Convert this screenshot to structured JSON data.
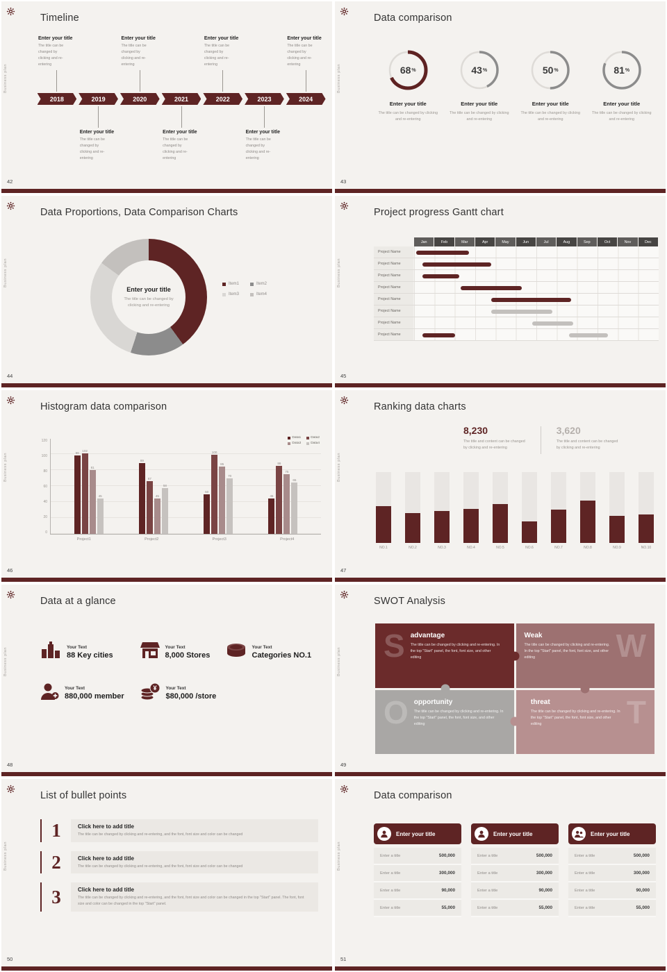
{
  "global": {
    "sidebar_text": "Business plan",
    "accent_color": "#5e2424"
  },
  "slides": {
    "timeline": {
      "page": "42",
      "title": "Timeline",
      "years": [
        "2018",
        "2019",
        "2020",
        "2021",
        "2022",
        "2023",
        "2024"
      ],
      "top_entry_indexes": [
        0,
        2,
        4,
        6
      ],
      "bottom_entry_indexes": [
        1,
        3,
        5
      ],
      "entry_title": "Enter your title",
      "entry_desc": [
        "The title can be changed by",
        "clicking and re-entering"
      ]
    },
    "donut_rings": {
      "page": "43",
      "title": "Data comparison",
      "item_title": "Enter your title",
      "item_desc": "The title can be changed by clicking and re-entering"
    },
    "proportions": {
      "page": "44",
      "title": "Data Proportions, Data Comparison Charts",
      "center_title": "Enter your title",
      "center_desc": [
        "The title can be changed by",
        "clicking and re-entering"
      ]
    },
    "gantt": {
      "page": "45",
      "title": "Project progress Gantt chart"
    },
    "histogram": {
      "page": "46",
      "title": "Histogram data comparison"
    },
    "ranking": {
      "page": "47",
      "title": "Ranking data charts",
      "headline": [
        {
          "value": "8,230",
          "color": "#5e2424",
          "desc": [
            "The title and content can be changed",
            "by clicking and re-entering"
          ]
        },
        {
          "value": "3,620",
          "color": "#b5b0ac",
          "desc": [
            "The title and content can be changed",
            "by clicking and re-entering"
          ]
        }
      ]
    },
    "stats": {
      "page": "48",
      "title": "Data at a glance",
      "items": [
        {
          "label": "Your Text",
          "value": "88 Key cities",
          "icon": "city-icon"
        },
        {
          "label": "Your Text",
          "value": "8,000 Stores",
          "icon": "store-icon"
        },
        {
          "label": "Your Text",
          "value": "Categories NO.1",
          "icon": "categories-icon"
        },
        {
          "label": "Your Text",
          "value": "880,000 member",
          "icon": "member-icon"
        },
        {
          "label": "Your Text",
          "value": "$80,000 /store",
          "icon": "money-icon"
        }
      ]
    },
    "swot": {
      "page": "49",
      "title": "SWOT Analysis",
      "quadrants": [
        {
          "letter": "S",
          "name": "advantage",
          "color": "#6b2b2b",
          "letter_side": "left",
          "desc": "The title can be changed by clicking and re-entering. In the top \"Start\" panel, the font, font size, and other editing"
        },
        {
          "letter": "W",
          "name": "Weak",
          "color": "#9d7171",
          "letter_side": "right",
          "desc": "The title can be changed by clicking and re-entering. In the top \"Start\" panel, the font, font size, and other editing"
        },
        {
          "letter": "O",
          "name": "opportunity",
          "color": "#a9a7a5",
          "letter_side": "left",
          "desc": "The title can be changed by clicking and re-entering. In the top \"Start\" panel, the font, font size, and other editing"
        },
        {
          "letter": "T",
          "name": "threat",
          "color": "#b79090",
          "letter_side": "right",
          "desc": "The title can be changed by clicking and re-entering. In the top \"Start\" panel, the font, font size, and other editing"
        }
      ]
    },
    "bullets": {
      "page": "50",
      "title": "List of bullet points",
      "items": [
        {
          "number": "1",
          "heading": "Click here to add title",
          "desc": "The title can be changed by clicking and re-entering, and the font, font size and color can be changed"
        },
        {
          "number": "2",
          "heading": "Click here to add title",
          "desc": "The title can be changed by clicking and re-entering, and the font, font size and color can be changed"
        },
        {
          "number": "3",
          "heading": "Click here to add title",
          "desc": "The title can be changed by clicking and re-entering, and the font, font size and color can be changed in the top \"Start\" panel. The font, font size and color can be changed in the top \"Start\" panel."
        }
      ]
    },
    "comparison_cards": {
      "page": "51",
      "title": "Data comparison",
      "row_label": "Enter a title",
      "cards": [
        {
          "header": "Enter your title",
          "icon": "person-icon",
          "values": [
            "500,000",
            "300,000",
            "90,000",
            "55,000"
          ]
        },
        {
          "header": "Enter your title",
          "icon": "person-icon",
          "values": [
            "500,000",
            "300,000",
            "90,000",
            "55,000"
          ]
        },
        {
          "header": "Enter your title",
          "icon": "people-icon",
          "values": [
            "500,000",
            "300,000",
            "90,000",
            "55,000"
          ]
        }
      ]
    }
  },
  "chart_data": [
    {
      "slide": "43",
      "type": "donut",
      "items": [
        {
          "label": "Enter your title",
          "percent": 68,
          "color": "#5e2222",
          "stroke": 5
        },
        {
          "label": "Enter your title",
          "percent": 43,
          "color": "#8c8c8c",
          "stroke": 3.5
        },
        {
          "label": "Enter your title",
          "percent": 50,
          "color": "#8c8c8c",
          "stroke": 3.5
        },
        {
          "label": "Enter your title",
          "percent": 81,
          "color": "#8c8c8c",
          "stroke": 3.5
        }
      ]
    },
    {
      "slide": "44",
      "type": "pie",
      "segments": [
        {
          "label": "Item1",
          "value": 40,
          "color": "#5e2424"
        },
        {
          "label": "Item2",
          "value": 15,
          "color": "#8c8c8c"
        },
        {
          "label": "Item3",
          "value": 30,
          "color": "#d9d7d4"
        },
        {
          "label": "Item4",
          "value": 15,
          "color": "#c3c0bd"
        }
      ]
    },
    {
      "slide": "45",
      "type": "gantt",
      "columns": [
        "Jan",
        "Feb",
        "Mar",
        "Apr",
        "May",
        "Jun",
        "Jul",
        "Aug",
        "Sep",
        "Oct",
        "Nov",
        "Dec"
      ],
      "row_label": "Project Name",
      "row_count": 8,
      "bars": [
        {
          "row": 0,
          "start": 0.1,
          "span": 2.6,
          "color": "#5e2424"
        },
        {
          "row": 1,
          "start": 0.4,
          "span": 3.4,
          "color": "#5e2424"
        },
        {
          "row": 2,
          "start": 0.4,
          "span": 1.8,
          "color": "#5e2424"
        },
        {
          "row": 3,
          "start": 2.3,
          "span": 3.0,
          "color": "#5e2424"
        },
        {
          "row": 4,
          "start": 3.8,
          "span": 3.9,
          "color": "#5e2424"
        },
        {
          "row": 5,
          "start": 3.8,
          "span": 3.0,
          "color": "#c3c0bd"
        },
        {
          "row": 6,
          "start": 5.8,
          "span": 2.0,
          "color": "#c3c0bd"
        },
        {
          "row": 7,
          "start": 0.4,
          "span": 1.6,
          "color": "#5e2424"
        },
        {
          "row": 7,
          "start": 7.6,
          "span": 1.9,
          "color": "#c3c0bd"
        }
      ]
    },
    {
      "slide": "46",
      "type": "bar",
      "categories": [
        "Project1",
        "Project2",
        "Project3",
        "Project4"
      ],
      "series": [
        {
          "name": "Data1",
          "color": "#5e2424",
          "values": [
            99,
            89,
            50,
            45
          ]
        },
        {
          "name": "Data2",
          "color": "#7a4444",
          "values": [
            102,
            67,
            100,
            86
          ]
        },
        {
          "name": "Data3",
          "color": "#a88b8b",
          "values": [
            81,
            45,
            85,
            75
          ]
        },
        {
          "name": "Data4",
          "color": "#c6c2bf",
          "values": [
            45,
            58,
            70,
            65
          ]
        }
      ],
      "ylim": [
        0,
        120
      ],
      "yticks": [
        0,
        20,
        40,
        60,
        80,
        100,
        120
      ]
    },
    {
      "slide": "47",
      "type": "bar",
      "categories": [
        "NO.1",
        "NO.2",
        "NO.3",
        "NO.4",
        "NO.5",
        "NO.6",
        "NO.7",
        "NO.8",
        "NO.9",
        "NO.10"
      ],
      "values": [
        52,
        42,
        45,
        48,
        55,
        30,
        47,
        60,
        38,
        40
      ],
      "max": 100,
      "fill_color": "#5e2424",
      "track_color": "#e9e6e3"
    }
  ]
}
